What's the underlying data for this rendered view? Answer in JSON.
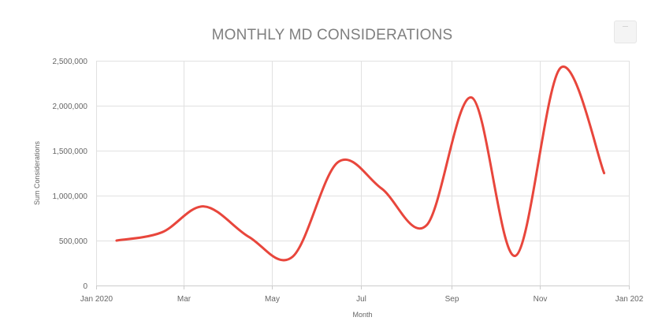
{
  "chart_data": {
    "type": "line",
    "title": "MONTHLY MD CONSIDERATIONS",
    "xlabel": "Month",
    "ylabel": "Sum Considerations",
    "x_ticks": [
      {
        "label": "Jan 2020",
        "date": "2020-01-01"
      },
      {
        "label": "Mar",
        "date": "2020-03-01"
      },
      {
        "label": "May",
        "date": "2020-05-01"
      },
      {
        "label": "Jul",
        "date": "2020-07-01"
      },
      {
        "label": "Sep",
        "date": "2020-09-01"
      },
      {
        "label": "Nov",
        "date": "2020-11-01"
      },
      {
        "label": "Jan 202",
        "date": "2021-01-01"
      }
    ],
    "xlim": [
      "2020-01-01",
      "2021-01-01"
    ],
    "ylim": [
      0,
      2500000
    ],
    "y_ticks": [
      0,
      500000,
      1000000,
      1500000,
      2000000,
      2500000
    ],
    "y_tick_labels": [
      "0",
      "500,000",
      "1,000,000",
      "1,500,000",
      "2,000,000",
      "2,500,000"
    ],
    "grid": true,
    "series": [
      {
        "color": "#e8463c",
        "x": [
          "2020-01-15",
          "2020-02-15",
          "2020-03-15",
          "2020-04-15",
          "2020-05-15",
          "2020-06-15",
          "2020-07-15",
          "2020-08-15",
          "2020-09-15",
          "2020-10-15",
          "2020-11-15",
          "2020-12-15"
        ],
        "values": [
          500000,
          590000,
          880000,
          540000,
          320000,
          1370000,
          1080000,
          670000,
          2090000,
          330000,
          2420000,
          1250000
        ]
      }
    ]
  },
  "menu": {
    "glyph": "—"
  }
}
